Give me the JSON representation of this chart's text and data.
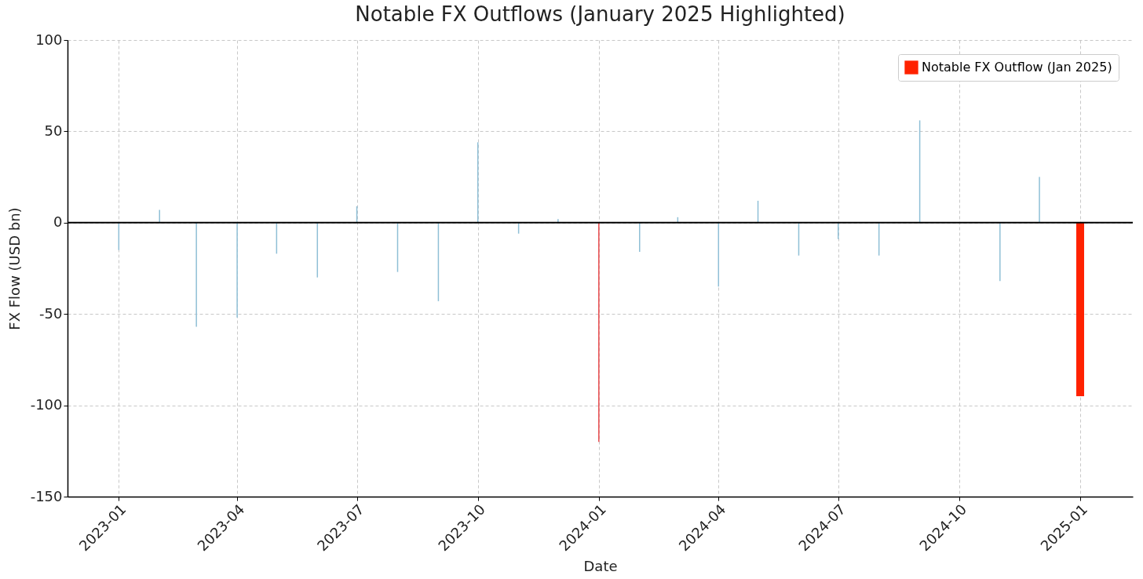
{
  "chart_data": {
    "type": "bar",
    "title": "Notable FX Outflows (January 2025 Highlighted)",
    "xlabel": "Date",
    "ylabel": "FX Flow (USD bn)",
    "x": [
      "2023-01",
      "2023-02",
      "2023-03",
      "2023-04",
      "2023-05",
      "2023-06",
      "2023-07",
      "2023-08",
      "2023-09",
      "2023-10",
      "2023-11",
      "2023-12",
      "2024-01",
      "2024-02",
      "2024-03",
      "2024-04",
      "2024-05",
      "2024-06",
      "2024-07",
      "2024-08",
      "2024-09",
      "2024-10",
      "2024-11",
      "2024-12",
      "2025-01"
    ],
    "series": [
      {
        "values": [
          -15,
          7,
          -57,
          -52,
          -17,
          -30,
          9,
          -27,
          -43,
          44,
          -6,
          2,
          -120,
          -16,
          3,
          -35,
          12,
          -18,
          -9,
          -18,
          56,
          0,
          -32,
          25,
          null
        ],
        "colors": [
          "#8fbfd6",
          "#8fbfd6",
          "#8fbfd6",
          "#8fbfd6",
          "#8fbfd6",
          "#8fbfd6",
          "#8fbfd6",
          "#8fbfd6",
          "#8fbfd6",
          "#8fbfd6",
          "#8fbfd6",
          "#8fbfd6",
          "#e8494b",
          "#8fbfd6",
          "#8fbfd6",
          "#8fbfd6",
          "#8fbfd6",
          "#8fbfd6",
          "#8fbfd6",
          "#8fbfd6",
          "#8fbfd6",
          "#8fbfd6",
          "#8fbfd6",
          "#8fbfd6",
          null
        ]
      },
      {
        "name": "Notable FX Outflow (Jan 2025)",
        "color": "#ff2200",
        "values": [
          null,
          null,
          null,
          null,
          null,
          null,
          null,
          null,
          null,
          null,
          null,
          null,
          null,
          null,
          null,
          null,
          null,
          null,
          null,
          null,
          null,
          null,
          null,
          null,
          -95
        ]
      }
    ],
    "xlim": [
      "2022-11-26",
      "2025-02-07"
    ],
    "xticks": [
      "2023-01",
      "2023-04",
      "2023-07",
      "2023-10",
      "2024-01",
      "2024-04",
      "2024-07",
      "2024-10",
      "2025-01"
    ],
    "ylim": [
      -150,
      100
    ],
    "yticks": [
      -150,
      -100,
      -50,
      0,
      50,
      100
    ],
    "ref_lines": [
      {
        "axis": "y",
        "value": 0,
        "color": "#000000"
      }
    ],
    "grid": true,
    "legend": "top right"
  }
}
